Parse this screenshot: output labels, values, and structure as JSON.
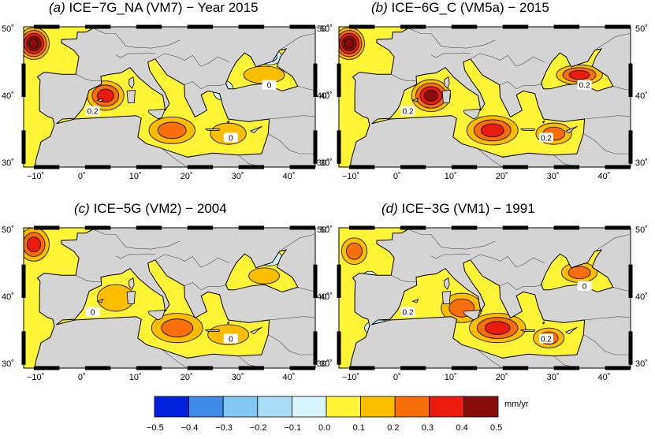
{
  "panels": [
    {
      "tag": "(a)",
      "title": "ICE−7G_NA (VM7) − Year 2015",
      "contour_labels": [
        "0.2",
        "0",
        "0"
      ],
      "hot": [
        [
          -10,
          48,
          3,
          2.4,
          5
        ],
        [
          4,
          40.2,
          3.6,
          2.2,
          3
        ],
        [
          17,
          35,
          4.5,
          2,
          2
        ],
        [
          28,
          34.5,
          3.5,
          1.6,
          1
        ],
        [
          35,
          43.3,
          4,
          1.3,
          1
        ]
      ],
      "cold": [
        [
          27,
          41,
          2,
          1.5,
          1
        ],
        [
          36,
          46,
          2.5,
          1.2,
          2
        ]
      ]
    },
    {
      "tag": "(b)",
      "title": "ICE−6G_C (VM5a) − 2015",
      "contour_labels": [
        "0.2",
        "0.2",
        "0.2"
      ],
      "hot": [
        [
          -10,
          48,
          3,
          2.4,
          5
        ],
        [
          6,
          40.2,
          3.8,
          2.4,
          4
        ],
        [
          18,
          35,
          5,
          2.2,
          3
        ],
        [
          30,
          34.5,
          3.5,
          1.6,
          2
        ],
        [
          35,
          43.3,
          4.5,
          1.5,
          3
        ]
      ],
      "cold": []
    },
    {
      "tag": "(c)",
      "title": "ICE−5G (VM2) − 2004",
      "contour_labels": [
        "0",
        "0"
      ],
      "hot": [
        [
          -10,
          48,
          3,
          2.5,
          3
        ],
        [
          6,
          40,
          3.6,
          2,
          1
        ],
        [
          18,
          35.5,
          5,
          2.2,
          2
        ],
        [
          28,
          34.5,
          4,
          1.5,
          1
        ],
        [
          35,
          43.3,
          3,
          1.2,
          1
        ]
      ],
      "cold": [
        [
          36,
          46,
          2.5,
          1.2,
          1
        ]
      ]
    },
    {
      "tag": "(d)",
      "title": "ICE−3G (VM1) − 1991",
      "contour_labels": [
        "0.2",
        "0.2",
        "0"
      ],
      "hot": [
        [
          -9,
          47,
          2.5,
          2,
          2
        ],
        [
          12,
          38.5,
          4,
          2.2,
          2
        ],
        [
          19,
          35.5,
          5.5,
          2.2,
          3
        ],
        [
          29,
          34,
          3,
          1.5,
          2
        ],
        [
          35,
          43.8,
          3.5,
          1.5,
          2
        ]
      ],
      "cold": [
        [
          -6,
          42,
          2,
          2,
          1
        ],
        [
          -4,
          35.5,
          3,
          1.2,
          1
        ]
      ]
    }
  ],
  "map_axes": {
    "x_ticks": [
      "−10˚",
      "0˚",
      "10˚",
      "20˚",
      "30˚",
      "40˚"
    ],
    "y_ticks": [
      "30˚",
      "40˚",
      "50˚"
    ]
  },
  "colorbar": {
    "labels": [
      "−0.5",
      "−0.4",
      "−0.3",
      "−0.2",
      "−0.1",
      "0.0",
      "0.1",
      "0.2",
      "0.3",
      "0.4",
      "0.5"
    ],
    "colors": [
      "#0022dd",
      "#3f8ae8",
      "#80c8f2",
      "#a8dcf4",
      "#d7f3fb",
      "#fff436",
      "#fbbd00",
      "#f86e0c",
      "#ea1c10",
      "#8a0c0c"
    ],
    "unit": "mm/yr"
  }
}
